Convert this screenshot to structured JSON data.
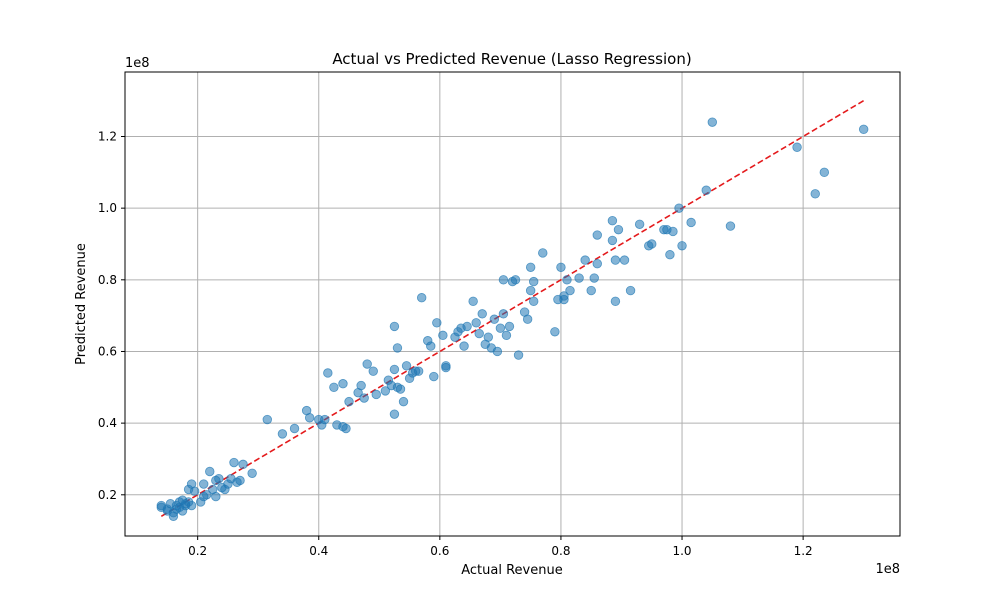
{
  "chart_data": {
    "type": "scatter",
    "title": "Actual vs Predicted Revenue (Lasso Regression)",
    "xlabel": "Actual Revenue",
    "ylabel": "Predicted Revenue",
    "x_offset_label": "1e8",
    "y_offset_label": "1e8",
    "xlim": [
      0.08,
      1.36
    ],
    "ylim": [
      0.085,
      1.38
    ],
    "x_ticks": [
      0.2,
      0.4,
      0.6,
      0.8,
      1.0,
      1.2
    ],
    "y_ticks": [
      0.2,
      0.4,
      0.6,
      0.8,
      1.0,
      1.2
    ],
    "x_tick_labels": [
      "0.2",
      "0.4",
      "0.6",
      "0.8",
      "1.0",
      "1.2"
    ],
    "y_tick_labels": [
      "0.2",
      "0.4",
      "0.6",
      "0.8",
      "1.0",
      "1.2"
    ],
    "grid": true,
    "point_color": "#1f77b4",
    "line_color": "#e41a1c",
    "reference_line": {
      "x": [
        0.14,
        1.3
      ],
      "y": [
        0.14,
        1.3
      ],
      "style": "dashed"
    },
    "points": [
      [
        0.14,
        0.17
      ],
      [
        0.14,
        0.165
      ],
      [
        0.15,
        0.16
      ],
      [
        0.15,
        0.155
      ],
      [
        0.155,
        0.175
      ],
      [
        0.16,
        0.15
      ],
      [
        0.16,
        0.14
      ],
      [
        0.165,
        0.17
      ],
      [
        0.165,
        0.16
      ],
      [
        0.17,
        0.18
      ],
      [
        0.17,
        0.165
      ],
      [
        0.175,
        0.155
      ],
      [
        0.175,
        0.185
      ],
      [
        0.18,
        0.17
      ],
      [
        0.18,
        0.175
      ],
      [
        0.185,
        0.18
      ],
      [
        0.185,
        0.215
      ],
      [
        0.19,
        0.17
      ],
      [
        0.19,
        0.23
      ],
      [
        0.195,
        0.21
      ],
      [
        0.205,
        0.18
      ],
      [
        0.21,
        0.195
      ],
      [
        0.21,
        0.23
      ],
      [
        0.215,
        0.2
      ],
      [
        0.22,
        0.265
      ],
      [
        0.225,
        0.215
      ],
      [
        0.23,
        0.195
      ],
      [
        0.23,
        0.24
      ],
      [
        0.235,
        0.245
      ],
      [
        0.24,
        0.22
      ],
      [
        0.245,
        0.215
      ],
      [
        0.25,
        0.23
      ],
      [
        0.255,
        0.245
      ],
      [
        0.26,
        0.29
      ],
      [
        0.265,
        0.235
      ],
      [
        0.27,
        0.24
      ],
      [
        0.275,
        0.285
      ],
      [
        0.29,
        0.26
      ],
      [
        0.315,
        0.41
      ],
      [
        0.34,
        0.37
      ],
      [
        0.36,
        0.385
      ],
      [
        0.38,
        0.435
      ],
      [
        0.385,
        0.415
      ],
      [
        0.4,
        0.41
      ],
      [
        0.405,
        0.395
      ],
      [
        0.41,
        0.41
      ],
      [
        0.415,
        0.54
      ],
      [
        0.425,
        0.5
      ],
      [
        0.43,
        0.395
      ],
      [
        0.44,
        0.39
      ],
      [
        0.445,
        0.385
      ],
      [
        0.44,
        0.51
      ],
      [
        0.45,
        0.46
      ],
      [
        0.465,
        0.485
      ],
      [
        0.47,
        0.505
      ],
      [
        0.475,
        0.47
      ],
      [
        0.48,
        0.565
      ],
      [
        0.49,
        0.545
      ],
      [
        0.495,
        0.48
      ],
      [
        0.51,
        0.49
      ],
      [
        0.515,
        0.52
      ],
      [
        0.52,
        0.505
      ],
      [
        0.525,
        0.67
      ],
      [
        0.525,
        0.55
      ],
      [
        0.53,
        0.61
      ],
      [
        0.525,
        0.425
      ],
      [
        0.53,
        0.5
      ],
      [
        0.535,
        0.495
      ],
      [
        0.54,
        0.46
      ],
      [
        0.545,
        0.56
      ],
      [
        0.55,
        0.525
      ],
      [
        0.555,
        0.54
      ],
      [
        0.56,
        0.545
      ],
      [
        0.565,
        0.545
      ],
      [
        0.57,
        0.75
      ],
      [
        0.58,
        0.63
      ],
      [
        0.585,
        0.615
      ],
      [
        0.59,
        0.53
      ],
      [
        0.595,
        0.68
      ],
      [
        0.605,
        0.645
      ],
      [
        0.61,
        0.56
      ],
      [
        0.61,
        0.555
      ],
      [
        0.625,
        0.64
      ],
      [
        0.63,
        0.655
      ],
      [
        0.635,
        0.665
      ],
      [
        0.64,
        0.615
      ],
      [
        0.645,
        0.67
      ],
      [
        0.655,
        0.74
      ],
      [
        0.66,
        0.68
      ],
      [
        0.665,
        0.65
      ],
      [
        0.67,
        0.705
      ],
      [
        0.675,
        0.62
      ],
      [
        0.68,
        0.64
      ],
      [
        0.685,
        0.61
      ],
      [
        0.69,
        0.69
      ],
      [
        0.695,
        0.6
      ],
      [
        0.7,
        0.665
      ],
      [
        0.705,
        0.705
      ],
      [
        0.705,
        0.8
      ],
      [
        0.71,
        0.645
      ],
      [
        0.715,
        0.67
      ],
      [
        0.72,
        0.795
      ],
      [
        0.725,
        0.8
      ],
      [
        0.73,
        0.59
      ],
      [
        0.74,
        0.71
      ],
      [
        0.745,
        0.69
      ],
      [
        0.75,
        0.835
      ],
      [
        0.75,
        0.77
      ],
      [
        0.755,
        0.795
      ],
      [
        0.755,
        0.74
      ],
      [
        0.77,
        0.875
      ],
      [
        0.79,
        0.655
      ],
      [
        0.795,
        0.745
      ],
      [
        0.8,
        0.835
      ],
      [
        0.805,
        0.755
      ],
      [
        0.805,
        0.745
      ],
      [
        0.81,
        0.8
      ],
      [
        0.815,
        0.77
      ],
      [
        0.83,
        0.805
      ],
      [
        0.84,
        0.855
      ],
      [
        0.85,
        0.77
      ],
      [
        0.855,
        0.805
      ],
      [
        0.86,
        0.925
      ],
      [
        0.86,
        0.845
      ],
      [
        0.885,
        0.965
      ],
      [
        0.885,
        0.91
      ],
      [
        0.89,
        0.855
      ],
      [
        0.89,
        0.74
      ],
      [
        0.895,
        0.94
      ],
      [
        0.905,
        0.855
      ],
      [
        0.915,
        0.77
      ],
      [
        0.93,
        0.955
      ],
      [
        0.945,
        0.895
      ],
      [
        0.95,
        0.9
      ],
      [
        0.97,
        0.94
      ],
      [
        0.975,
        0.94
      ],
      [
        0.98,
        0.87
      ],
      [
        0.985,
        0.935
      ],
      [
        0.995,
        1.0
      ],
      [
        1.0,
        0.895
      ],
      [
        1.015,
        0.96
      ],
      [
        1.04,
        1.05
      ],
      [
        1.05,
        1.24
      ],
      [
        1.08,
        0.95
      ],
      [
        1.19,
        1.17
      ],
      [
        1.22,
        1.04
      ],
      [
        1.235,
        1.1
      ],
      [
        1.3,
        1.22
      ]
    ]
  }
}
